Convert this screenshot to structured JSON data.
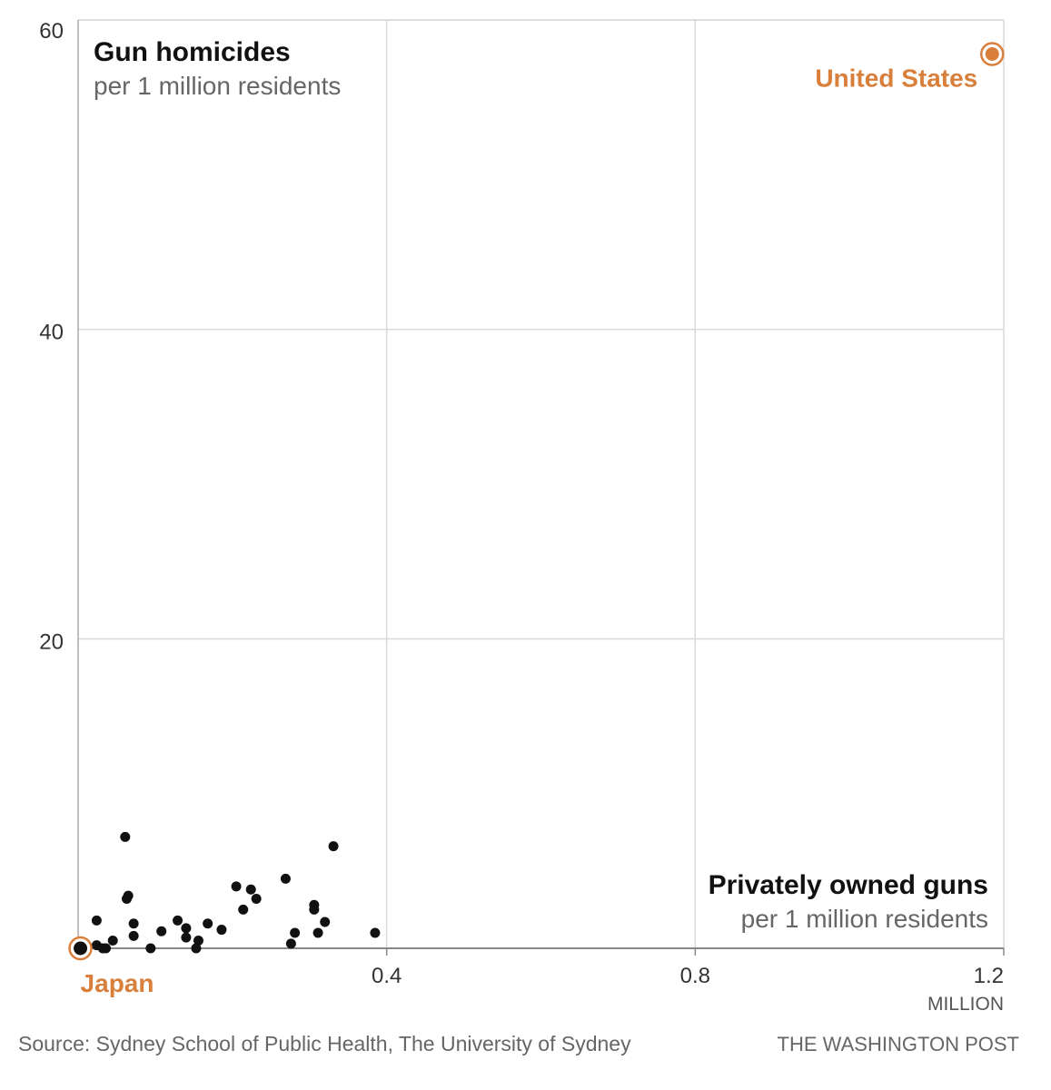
{
  "chart_data": {
    "type": "scatter",
    "title": "Gun homicides",
    "ylabel_sub": "per 1 million residents",
    "xlabel": "Privately owned guns",
    "xlabel_sub": "per 1 million residents",
    "x_unit": "MILLION",
    "xlim": [
      0,
      1.2
    ],
    "ylim": [
      0,
      60
    ],
    "x_ticks": [
      {
        "value": 0.4,
        "label": "0.4"
      },
      {
        "value": 0.8,
        "label": "0.8"
      },
      {
        "value": 1.2,
        "label": "1.2"
      }
    ],
    "y_ticks": [
      {
        "value": 20,
        "label": "20"
      },
      {
        "value": 40,
        "label": "40"
      },
      {
        "value": 60,
        "label": "60"
      }
    ],
    "grid": true,
    "highlight_color": "#d97f3c",
    "point_color": "#111111",
    "points": [
      {
        "x": 0.003,
        "y": 0.0
      },
      {
        "x": 0.024,
        "y": 0.2
      },
      {
        "x": 0.024,
        "y": 1.8
      },
      {
        "x": 0.032,
        "y": 0.0
      },
      {
        "x": 0.036,
        "y": 0.0
      },
      {
        "x": 0.045,
        "y": 0.5
      },
      {
        "x": 0.061,
        "y": 7.2
      },
      {
        "x": 0.063,
        "y": 3.2
      },
      {
        "x": 0.065,
        "y": 3.4
      },
      {
        "x": 0.072,
        "y": 1.6
      },
      {
        "x": 0.072,
        "y": 0.8
      },
      {
        "x": 0.094,
        "y": 0.0
      },
      {
        "x": 0.108,
        "y": 1.1
      },
      {
        "x": 0.129,
        "y": 1.8
      },
      {
        "x": 0.14,
        "y": 1.3
      },
      {
        "x": 0.14,
        "y": 0.7
      },
      {
        "x": 0.153,
        "y": 0.0
      },
      {
        "x": 0.156,
        "y": 0.5
      },
      {
        "x": 0.168,
        "y": 1.6
      },
      {
        "x": 0.186,
        "y": 1.2
      },
      {
        "x": 0.205,
        "y": 4.0
      },
      {
        "x": 0.214,
        "y": 2.5
      },
      {
        "x": 0.224,
        "y": 3.8
      },
      {
        "x": 0.231,
        "y": 3.2
      },
      {
        "x": 0.269,
        "y": 4.5
      },
      {
        "x": 0.276,
        "y": 0.3
      },
      {
        "x": 0.281,
        "y": 1.0
      },
      {
        "x": 0.306,
        "y": 2.5
      },
      {
        "x": 0.306,
        "y": 2.8
      },
      {
        "x": 0.311,
        "y": 1.0
      },
      {
        "x": 0.32,
        "y": 1.7
      },
      {
        "x": 0.331,
        "y": 6.6
      },
      {
        "x": 0.385,
        "y": 1.0
      }
    ],
    "highlights": [
      {
        "name": "United States",
        "x": 1.185,
        "y": 57.8
      },
      {
        "name": "Japan",
        "x": 0.003,
        "y": 0.0
      }
    ]
  },
  "footer": {
    "source": "Source: Sydney School of Public Health, The University of Sydney",
    "credit": "THE WASHINGTON POST"
  }
}
